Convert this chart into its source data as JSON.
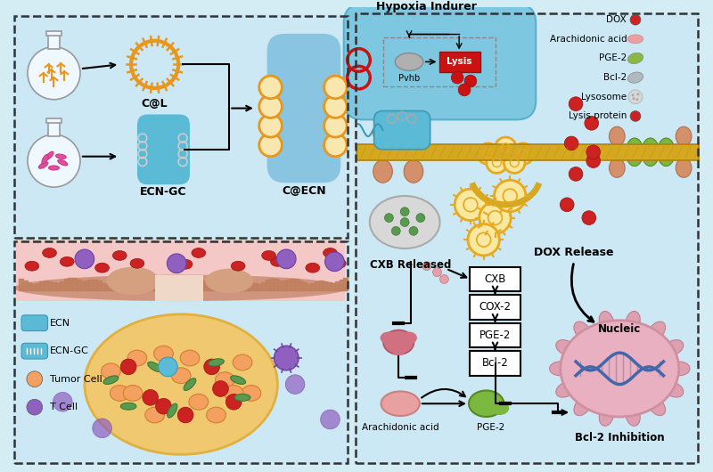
{
  "bg_color": "#d4edf5",
  "panel_bg": "#cce8f4",
  "dashed_color": "#333333",
  "colors": {
    "liposome_orange": "#e8971e",
    "bacteria_blue": "#5bbad5",
    "red_dot": "#cc2222",
    "pink_oval": "#e8a0a8",
    "green_pge2": "#8ab84a",
    "gold_membrane": "#d4a820",
    "membrane_tan": "#d49060",
    "tumor_yellow": "#f0c870",
    "pink_tissue": "#f5c8c8",
    "tissue_brown": "#c08060",
    "purple_cell": "#9370bb",
    "green_bacteria": "#5a9a50",
    "lysis_red": "#cc1111",
    "hypoxia_blue": "#7dc8e0",
    "nucleus_pink": "#e8b0c0",
    "dna_blue": "#4466aa",
    "bcl2_gray": "#b0b8c0",
    "lysosome_gray": "#d8d8d8",
    "arachidonic_pink": "#e8a0a0",
    "green_protein": "#8ab840"
  },
  "labels": {
    "cal": "C@L",
    "ecn_gc": "ECN-GC",
    "cecn": "C@ECN",
    "hypoxia": "Hypoxia Indurer",
    "pvhb": "Pvhb",
    "lysis": "Lysis",
    "dox": "DOX",
    "arachidonic": "Arachidonic acid",
    "pge2": "PGE-2",
    "bcl2": "Bcl-2",
    "lysosome": "Lysosome",
    "lysis_protein": "Lysis protein",
    "cxb_released": "CXB Released",
    "cxb": "CXB",
    "cox2": "COX-2",
    "pge2_box": "PGE-2",
    "bcl2_box": "Bcl-2",
    "dox_release": "DOX Release",
    "nucleic": "Nucleic",
    "bcl2_inhibition": "Bcl-2 Inhibition",
    "arachidonic_label": "Arachidonic acid",
    "pge2_label": "PGE-2",
    "ecn_legend": "ECN",
    "ecn_gc_legend": "ECN-GC",
    "tumor_legend": "Tumor Cell",
    "tcell_legend": "T Cell"
  }
}
